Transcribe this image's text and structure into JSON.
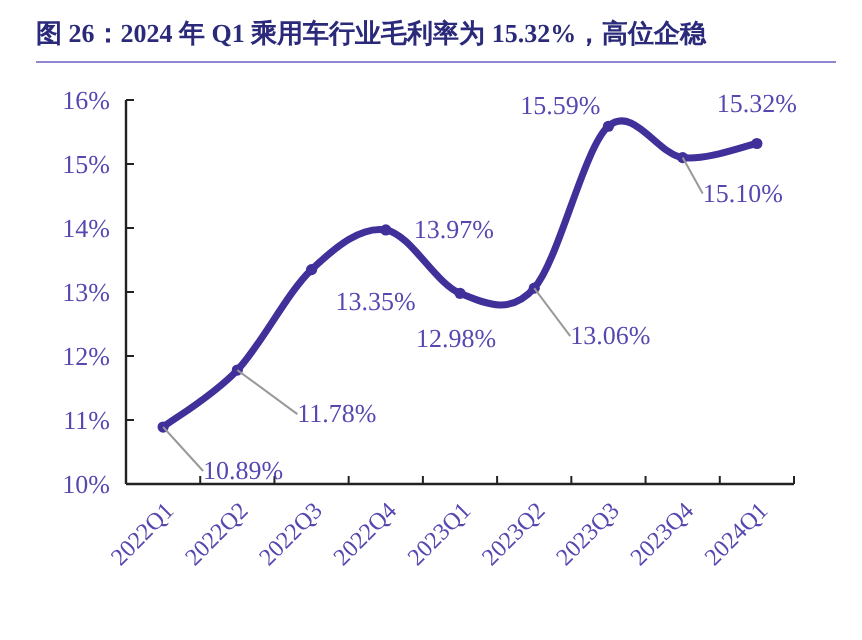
{
  "chart_data": {
    "type": "line",
    "title": "图 26：2024 年 Q1 乘用车行业毛利率为 15.32%，高位企稳",
    "categories": [
      "2022Q1",
      "2022Q2",
      "2022Q3",
      "2022Q4",
      "2023Q1",
      "2023Q2",
      "2023Q3",
      "2023Q4",
      "2024Q1"
    ],
    "values": [
      10.89,
      11.78,
      13.35,
      13.97,
      12.98,
      13.06,
      15.59,
      15.1,
      15.32
    ],
    "value_labels": [
      "10.89%",
      "11.78%",
      "13.35%",
      "13.97%",
      "12.98%",
      "13.06%",
      "15.59%",
      "15.10%",
      "15.32%"
    ],
    "color": "#40309a",
    "marker": "circle",
    "grid": false,
    "ylim": [
      10,
      16
    ],
    "yticks": [
      {
        "value": 10,
        "label": "10%"
      },
      {
        "value": 11,
        "label": "11%"
      },
      {
        "value": 12,
        "label": "12%"
      },
      {
        "value": 13,
        "label": "13%"
      },
      {
        "value": 14,
        "label": "14%"
      },
      {
        "value": 15,
        "label": "15%"
      },
      {
        "value": 16,
        "label": "16%"
      }
    ]
  }
}
